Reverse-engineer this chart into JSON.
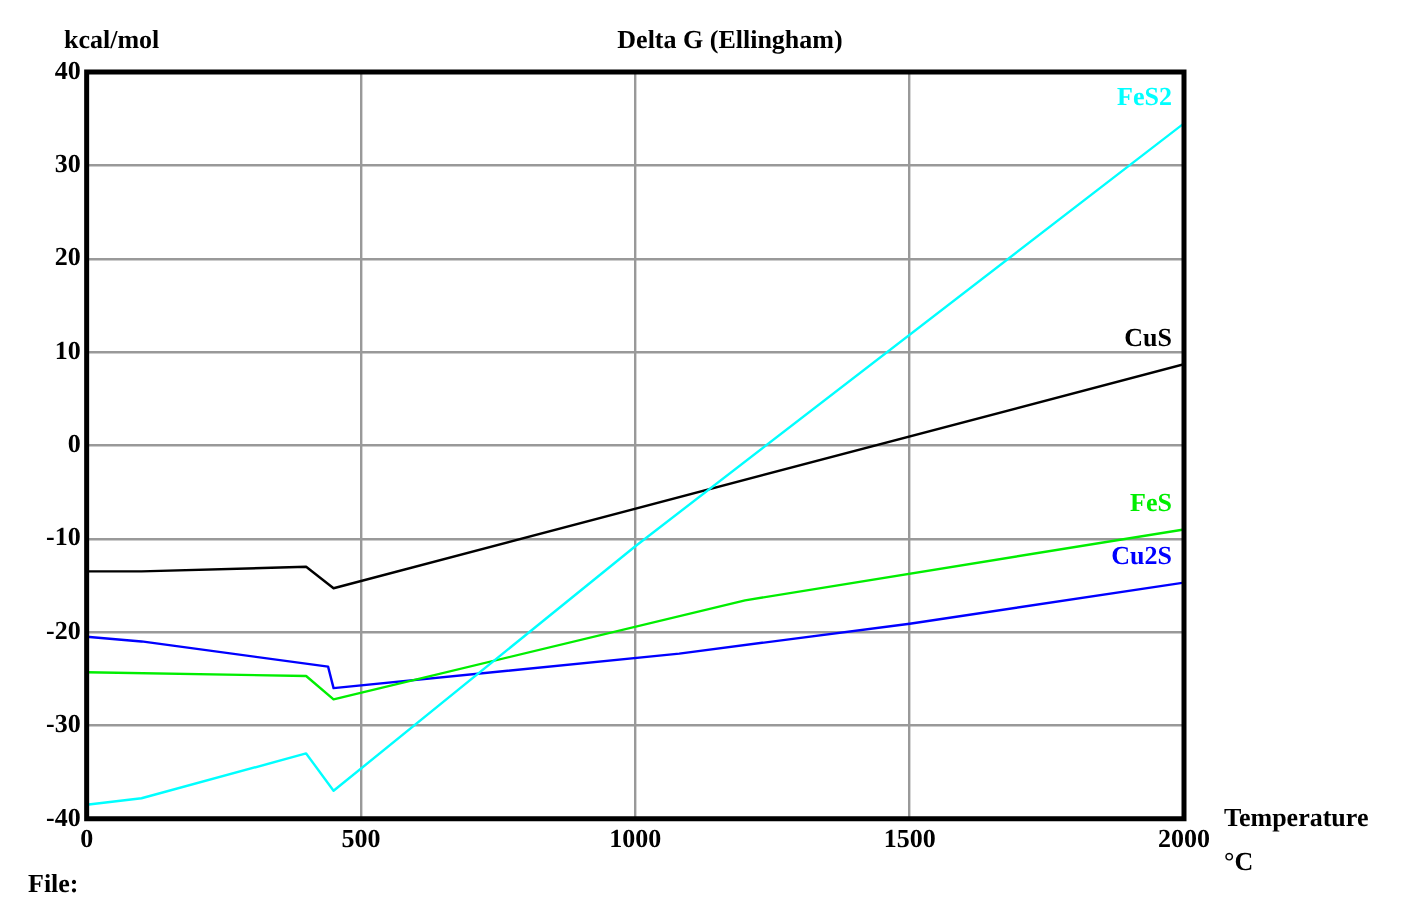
{
  "chart_data": {
    "type": "line",
    "title": "Delta G (Ellingham)",
    "xlabel": "Temperature °C",
    "ylabel": "kcal/mol",
    "annotations": [
      "File:"
    ],
    "xlim": [
      0,
      2000
    ],
    "xticks": [
      0,
      500,
      1000,
      1500,
      2000
    ],
    "ylim": [
      -40,
      40
    ],
    "yticks": [
      -40,
      -30,
      -20,
      -10,
      0,
      10,
      20,
      30,
      40
    ],
    "grid": true,
    "legend": false,
    "marker": "none",
    "series": [
      {
        "name": "FeS2",
        "color": "#00ffff",
        "x": [
          0,
          100,
          400,
          450,
          1000,
          2000
        ],
        "values": [
          -38.5,
          -37.8,
          -33,
          -37,
          -10.8,
          34.5
        ]
      },
      {
        "name": "CuS",
        "color": "#000000",
        "x": [
          0,
          100,
          400,
          450,
          2000
        ],
        "values": [
          -13.5,
          -13.5,
          -13,
          -15.3,
          8.7
        ]
      },
      {
        "name": "FeS",
        "color": "#00ee00",
        "x": [
          0,
          400,
          450,
          1200,
          2000
        ],
        "values": [
          -24.3,
          -24.7,
          -27.2,
          -16.6,
          -9
        ]
      },
      {
        "name": "Cu2S",
        "color": "#0000ff",
        "x": [
          0,
          100,
          440,
          450,
          1080,
          1500,
          2000
        ],
        "values": [
          -20.5,
          -21,
          -23.7,
          -26,
          -22.3,
          -19.1,
          -14.7
        ]
      }
    ]
  }
}
